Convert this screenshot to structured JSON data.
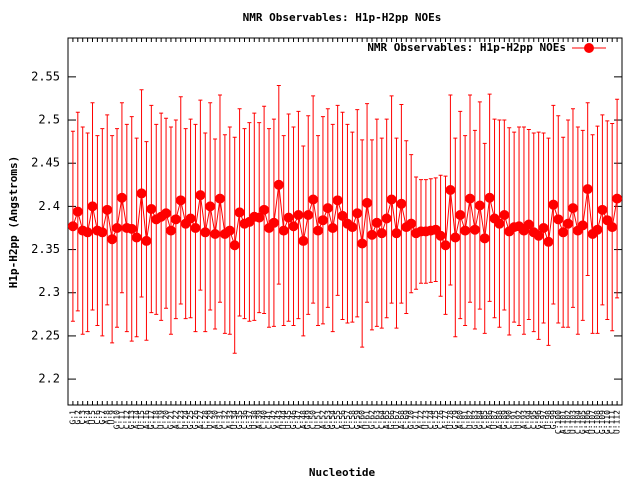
{
  "chart_data": {
    "type": "errorbar-line",
    "title": "NMR Observables: H1p-H2pp NOEs",
    "x_label": "Nucleotide",
    "y_label": "H1p-H2pp (Angstroms)",
    "legend_position": "top-right",
    "series": [
      {
        "name": "NMR Observables: H1p-H2pp NOEs",
        "color": "#ff0000",
        "categories": [
          "G:1",
          "G:2",
          "C:3",
          "A:4",
          "U:5",
          "C:6",
          "G:7",
          "A:8",
          "U:9",
          "G:10",
          "C:11",
          "C:12",
          "G:13",
          "A:14",
          "U:15",
          "A:16",
          "G:17",
          "C:18",
          "U:19",
          "C:20",
          "G:21",
          "A:22",
          "C:23",
          "U:24",
          "G:25",
          "G:26",
          "A:27",
          "C:28",
          "U:29",
          "A:30",
          "G:31",
          "C:32",
          "A:33",
          "U:34",
          "G:35",
          "C:36",
          "G:37",
          "U:38",
          "A:39",
          "C:40",
          "C:41",
          "G:42",
          "A:43",
          "U:44",
          "U:45",
          "G:46",
          "C:47",
          "A:48",
          "G:49",
          "C:50",
          "U:51",
          "A:52",
          "G:53",
          "G:54",
          "C:55",
          "A:56",
          "U:57",
          "C:58",
          "G:59",
          "A:60",
          "U:61",
          "G:62",
          "C:63",
          "C:64",
          "A:65",
          "G:66",
          "U:67",
          "A:68",
          "C:69",
          "G:70",
          "G:71",
          "A:72",
          "U:73",
          "C:74",
          "G:75",
          "C:76",
          "A:77",
          "U:78",
          "G:79",
          "A:80",
          "C:81",
          "U:82",
          "G:83",
          "G:84",
          "C:85",
          "A:86",
          "U:87",
          "A:88",
          "G:89",
          "C:90",
          "G:91",
          "U:92",
          "A:93",
          "C:94",
          "C:95",
          "G:96",
          "A:97",
          "U:98",
          "G:99",
          "C:100",
          "A:101",
          "G:102",
          "U:103",
          "C:104",
          "G:105",
          "A:106",
          "U:107",
          "C:108",
          "G:109",
          "G:110",
          "C:111",
          "U:112"
        ],
        "values": [
          2.377,
          2.394,
          2.372,
          2.37,
          2.4,
          2.372,
          2.37,
          2.396,
          2.362,
          2.375,
          2.41,
          2.375,
          2.374,
          2.364,
          2.415,
          2.36,
          2.397,
          2.385,
          2.388,
          2.392,
          2.372,
          2.385,
          2.407,
          2.38,
          2.386,
          2.375,
          2.413,
          2.37,
          2.4,
          2.368,
          2.409,
          2.368,
          2.372,
          2.355,
          2.393,
          2.38,
          2.382,
          2.388,
          2.387,
          2.396,
          2.375,
          2.381,
          2.425,
          2.372,
          2.387,
          2.377,
          2.39,
          2.36,
          2.39,
          2.408,
          2.372,
          2.384,
          2.398,
          2.375,
          2.407,
          2.389,
          2.38,
          2.376,
          2.392,
          2.357,
          2.404,
          2.367,
          2.381,
          2.369,
          2.386,
          2.408,
          2.369,
          2.403,
          2.376,
          2.38,
          2.369,
          2.371,
          2.371,
          2.372,
          2.373,
          2.366,
          2.355,
          2.419,
          2.364,
          2.39,
          2.372,
          2.409,
          2.373,
          2.401,
          2.363,
          2.41,
          2.386,
          2.38,
          2.39,
          2.371,
          2.376,
          2.377,
          2.372,
          2.379,
          2.37,
          2.366,
          2.375,
          2.359,
          2.402,
          2.385,
          2.37,
          2.38,
          2.398,
          2.372,
          2.378,
          2.42,
          2.368,
          2.373,
          2.396,
          2.384,
          2.376,
          2.409
        ],
        "errors": [
          0.11,
          0.115,
          0.12,
          0.115,
          0.12,
          0.11,
          0.12,
          0.11,
          0.12,
          0.115,
          0.11,
          0.12,
          0.13,
          0.115,
          0.12,
          0.115,
          0.12,
          0.11,
          0.12,
          0.11,
          0.12,
          0.115,
          0.12,
          0.11,
          0.115,
          0.12,
          0.11,
          0.115,
          0.12,
          0.11,
          0.12,
          0.115,
          0.12,
          0.125,
          0.12,
          0.11,
          0.115,
          0.12,
          0.11,
          0.12,
          0.115,
          0.12,
          0.115,
          0.11,
          0.12,
          0.115,
          0.12,
          0.11,
          0.115,
          0.12,
          0.11,
          0.12,
          0.115,
          0.12,
          0.11,
          0.12,
          0.115,
          0.11,
          0.12,
          0.12,
          0.115,
          0.11,
          0.12,
          0.11,
          0.115,
          0.12,
          0.11,
          0.115,
          0.1,
          0.08,
          0.065,
          0.06,
          0.06,
          0.06,
          0.06,
          0.07,
          0.08,
          0.11,
          0.115,
          0.12,
          0.11,
          0.12,
          0.115,
          0.12,
          0.11,
          0.12,
          0.115,
          0.12,
          0.11,
          0.12,
          0.11,
          0.115,
          0.12,
          0.11,
          0.115,
          0.12,
          0.11,
          0.12,
          0.115,
          0.12,
          0.11,
          0.12,
          0.115,
          0.12,
          0.11,
          0.1,
          0.115,
          0.12,
          0.11,
          0.115,
          0.12,
          0.115
        ],
        "marker": "circle"
      }
    ],
    "ylim": [
      2.17,
      2.595
    ],
    "yticks": [
      2.2,
      2.25,
      2.3,
      2.35,
      2.4,
      2.45,
      2.5,
      2.55
    ]
  }
}
